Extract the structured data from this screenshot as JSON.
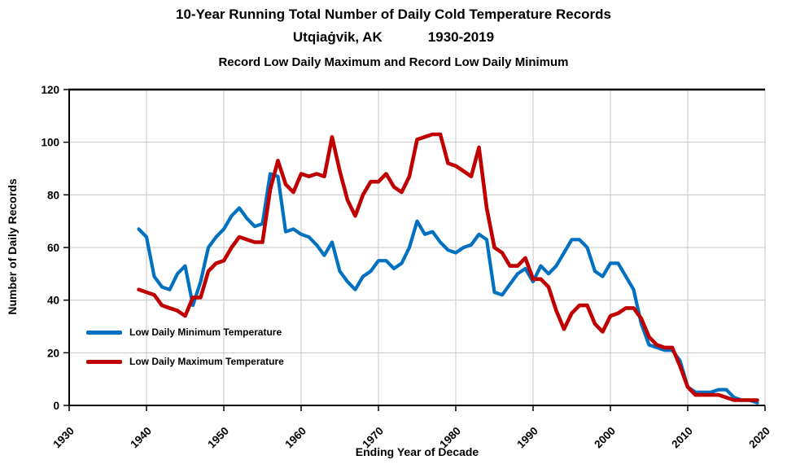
{
  "header": {
    "title_line1": "10-Year Running Total Number of Daily Cold Temperature Records",
    "title_line2_location": "Utqiaġvik, AK",
    "title_line2_period": "1930-2019",
    "subtitle": "Record Low Daily Maximum and Record Low Daily Minimum"
  },
  "legend": {
    "items": [
      {
        "label": "Low Daily Minimum Temperature",
        "color": "#0070C0"
      },
      {
        "label": "Low Daily Maximum Temperature",
        "color": "#C00000"
      }
    ]
  },
  "colors": {
    "blue_series": "#0070C0",
    "red_series": "#C00000",
    "gridline": "#C6C6C6",
    "axis": "#000000",
    "background": "#FFFFFF"
  },
  "chart_data": {
    "type": "line",
    "title": "10-Year Running Total Number of Daily Cold Temperature Records",
    "xlabel": "Ending Year of Decade",
    "ylabel": "Number of Daily Records",
    "xlim": [
      1930,
      2020
    ],
    "ylim": [
      0,
      120
    ],
    "x_ticks": [
      1930,
      1940,
      1950,
      1960,
      1970,
      1980,
      1990,
      2000,
      2010,
      2020
    ],
    "y_ticks": [
      0,
      20,
      40,
      60,
      80,
      100,
      120
    ],
    "grid": true,
    "legend_position": "inside-lower-left",
    "x": [
      1939,
      1940,
      1941,
      1942,
      1943,
      1944,
      1945,
      1946,
      1947,
      1948,
      1949,
      1950,
      1951,
      1952,
      1953,
      1954,
      1955,
      1956,
      1957,
      1958,
      1959,
      1960,
      1961,
      1962,
      1963,
      1964,
      1965,
      1966,
      1967,
      1968,
      1969,
      1970,
      1971,
      1972,
      1973,
      1974,
      1975,
      1976,
      1977,
      1978,
      1979,
      1980,
      1981,
      1982,
      1983,
      1984,
      1985,
      1986,
      1987,
      1988,
      1989,
      1990,
      1991,
      1992,
      1993,
      1994,
      1995,
      1996,
      1997,
      1998,
      1999,
      2000,
      2001,
      2002,
      2003,
      2004,
      2005,
      2006,
      2007,
      2008,
      2009,
      2010,
      2011,
      2012,
      2013,
      2014,
      2015,
      2016,
      2017,
      2018,
      2019
    ],
    "series": [
      {
        "name": "Low Daily Minimum Temperature",
        "color": "#0070C0",
        "values": [
          67,
          64,
          49,
          45,
          44,
          50,
          53,
          38,
          47,
          60,
          64,
          67,
          72,
          75,
          71,
          68,
          69,
          88,
          87,
          66,
          67,
          65,
          64,
          61,
          57,
          62,
          51,
          47,
          44,
          49,
          51,
          55,
          55,
          52,
          54,
          60,
          70,
          65,
          66,
          62,
          59,
          58,
          60,
          61,
          65,
          63,
          43,
          42,
          46,
          50,
          52,
          47,
          53,
          50,
          53,
          58,
          63,
          63,
          60,
          51,
          49,
          54,
          54,
          49,
          44,
          31,
          23,
          22,
          21,
          21,
          17,
          7,
          5,
          5,
          5,
          6,
          6,
          3,
          2,
          2,
          1
        ]
      },
      {
        "name": "Low Daily Maximum Temperature",
        "color": "#C00000",
        "values": [
          44,
          43,
          42,
          38,
          37,
          36,
          34,
          41,
          41,
          51,
          54,
          55,
          60,
          64,
          63,
          62,
          62,
          82,
          93,
          84,
          81,
          88,
          87,
          88,
          87,
          102,
          89,
          78,
          72,
          80,
          85,
          85,
          88,
          83,
          81,
          87,
          101,
          102,
          103,
          103,
          92,
          91,
          89,
          87,
          98,
          75,
          60,
          58,
          53,
          53,
          56,
          48,
          48,
          45,
          36,
          29,
          35,
          38,
          38,
          31,
          28,
          34,
          35,
          37,
          37,
          33,
          26,
          23,
          22,
          22,
          15,
          7,
          4,
          4,
          4,
          4,
          3,
          2,
          2,
          2,
          2
        ]
      }
    ]
  }
}
